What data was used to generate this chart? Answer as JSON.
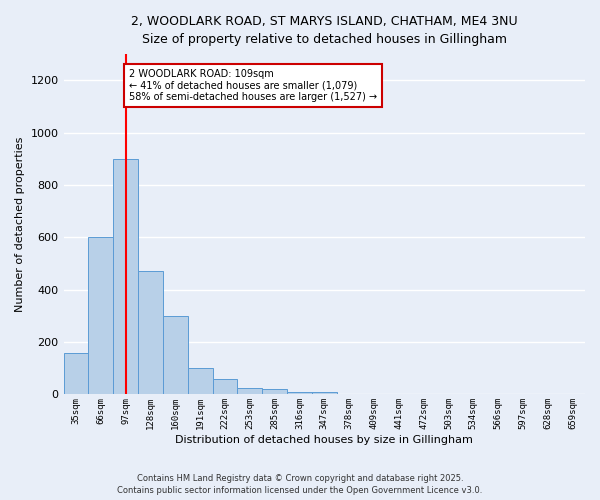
{
  "title_line1": "2, WOODLARK ROAD, ST MARYS ISLAND, CHATHAM, ME4 3NU",
  "title_line2": "Size of property relative to detached houses in Gillingham",
  "xlabel": "Distribution of detached houses by size in Gillingham",
  "ylabel": "Number of detached properties",
  "bar_values": [
    160,
    600,
    900,
    470,
    300,
    100,
    60,
    25,
    20,
    10,
    10,
    0,
    0,
    0,
    0,
    0,
    0,
    0,
    0,
    0,
    0
  ],
  "categories": [
    "35sqm",
    "66sqm",
    "97sqm",
    "128sqm",
    "160sqm",
    "191sqm",
    "222sqm",
    "253sqm",
    "285sqm",
    "316sqm",
    "347sqm",
    "378sqm",
    "409sqm",
    "441sqm",
    "472sqm",
    "503sqm",
    "534sqm",
    "566sqm",
    "597sqm",
    "628sqm",
    "659sqm"
  ],
  "bar_color": "#b8d0e8",
  "bar_edge_color": "#5b9bd5",
  "background_color": "#e8eef8",
  "grid_color": "#ffffff",
  "red_line_x": 2.5,
  "annotation_text": "2 WOODLARK ROAD: 109sqm\n← 41% of detached houses are smaller (1,079)\n58% of semi-detached houses are larger (1,527) →",
  "annotation_box_color": "#ffffff",
  "annotation_box_edge_color": "#cc0000",
  "footer_line1": "Contains HM Land Registry data © Crown copyright and database right 2025.",
  "footer_line2": "Contains public sector information licensed under the Open Government Licence v3.0.",
  "ylim": [
    0,
    1300
  ],
  "yticks": [
    0,
    200,
    400,
    600,
    800,
    1000,
    1200
  ]
}
